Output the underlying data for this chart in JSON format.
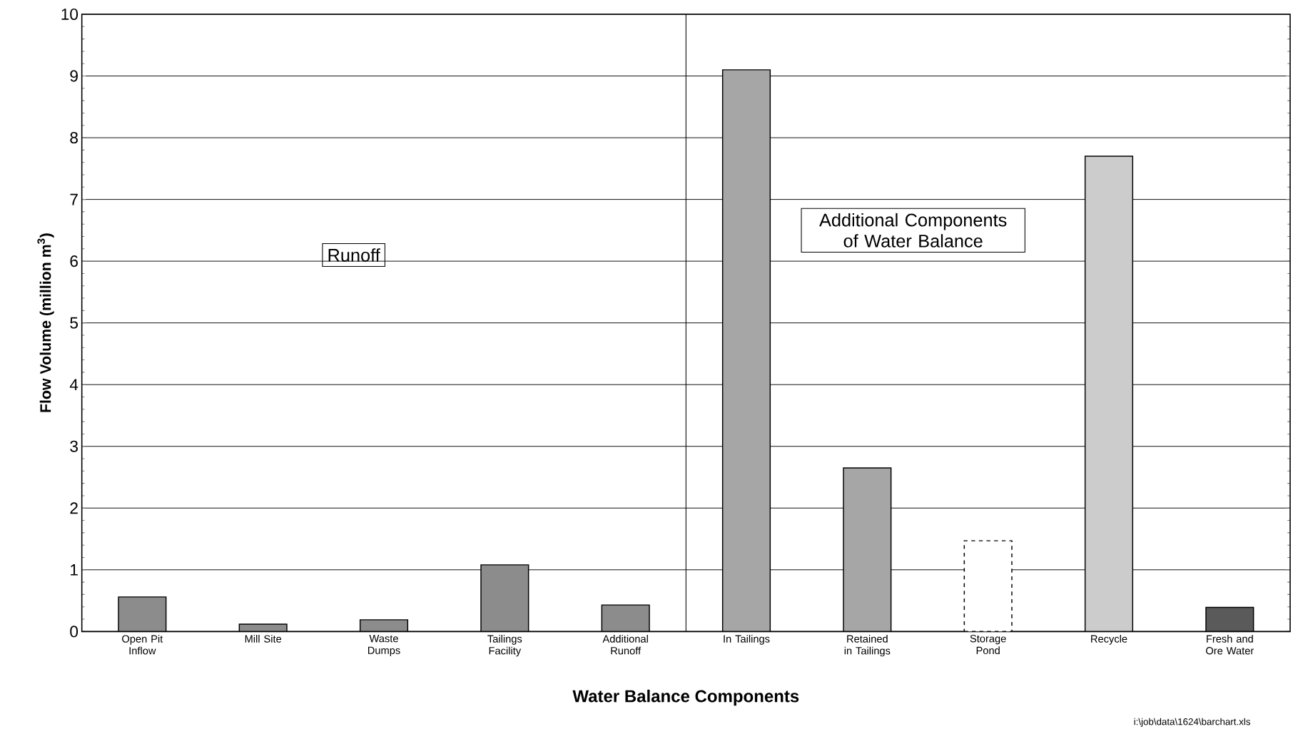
{
  "chart_data": {
    "type": "bar",
    "xlabel": "Water Balance Components",
    "ylabel": "Flow Volume (million m$^{3}$)",
    "categories": [
      "Open Pit Inflow",
      "Mill Site",
      "Waste Dumps",
      "Tailings Facility",
      "Additional Runoff",
      "In Tailings",
      "Retained in Tailings",
      "Storage Pond",
      "Recycle",
      "Fresh and Ore Water"
    ],
    "series": [
      {
        "color": "#8c8c8c",
        "line_style": "solid",
        "values": [
          0.56,
          0.12,
          0.19,
          1.08,
          0.43,
          null,
          null,
          null,
          null,
          null
        ]
      },
      {
        "color": "#a6a6a6",
        "line_style": "solid",
        "values": [
          null,
          null,
          null,
          null,
          null,
          9.1,
          2.65,
          null,
          null,
          null
        ]
      },
      {
        "color": "#ffffff",
        "line_style": "dashed",
        "values": [
          null,
          null,
          null,
          null,
          null,
          null,
          null,
          1.47,
          null,
          null
        ]
      },
      {
        "color": "#cccccc",
        "line_style": "solid",
        "values": [
          null,
          null,
          null,
          null,
          null,
          null,
          null,
          null,
          7.7,
          null
        ]
      },
      {
        "color": "#5a5a5a",
        "line_style": "solid",
        "values": [
          null,
          null,
          null,
          null,
          null,
          null,
          null,
          null,
          null,
          0.39
        ]
      }
    ],
    "ylim": [
      0,
      10
    ],
    "yticks": [
      0,
      1,
      2,
      3,
      4,
      5,
      6,
      7,
      8,
      9,
      10
    ],
    "grid": "y",
    "annotations": [
      "Runoff",
      "Additional Components of Water Balance",
      "i:\\job\\data\\1624\\barchart.xls"
    ]
  }
}
